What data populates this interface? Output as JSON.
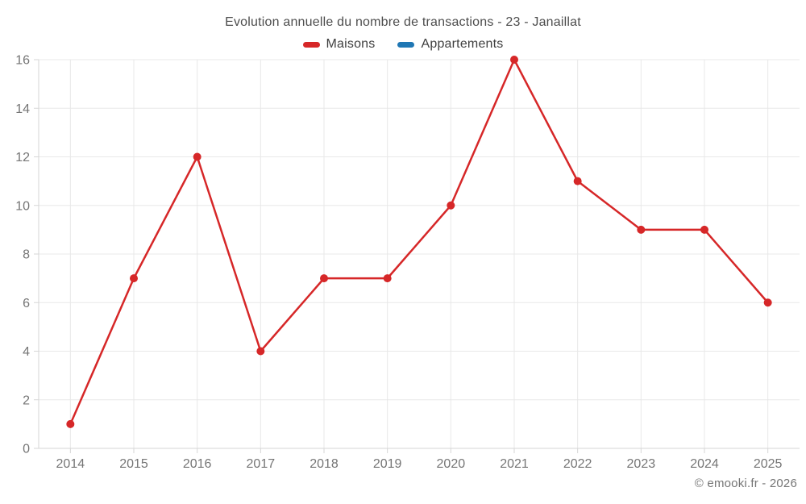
{
  "chart_data": {
    "type": "line",
    "title": "Evolution annuelle du nombre de transactions - 23 - Janaillat",
    "x": [
      "2014",
      "2015",
      "2016",
      "2017",
      "2018",
      "2019",
      "2020",
      "2021",
      "2022",
      "2023",
      "2024",
      "2025"
    ],
    "series": [
      {
        "name": "Maisons",
        "color": "#d62728",
        "values": [
          1,
          7,
          12,
          4,
          7,
          7,
          10,
          16,
          11,
          9,
          9,
          6
        ]
      },
      {
        "name": "Appartements",
        "color": "#1f77b4",
        "values": []
      }
    ],
    "ylim": [
      0,
      16
    ],
    "ytick_step": 2,
    "grid": true,
    "legend_position": "top"
  },
  "footer": {
    "text": "© emooki.fr - 2026"
  },
  "colors": {
    "grid": "#e8e8e8",
    "axis": "#d6d6d6",
    "tick_label": "#757575",
    "title_text": "#4d4d4d",
    "legend_text": "#3f3f3f"
  }
}
